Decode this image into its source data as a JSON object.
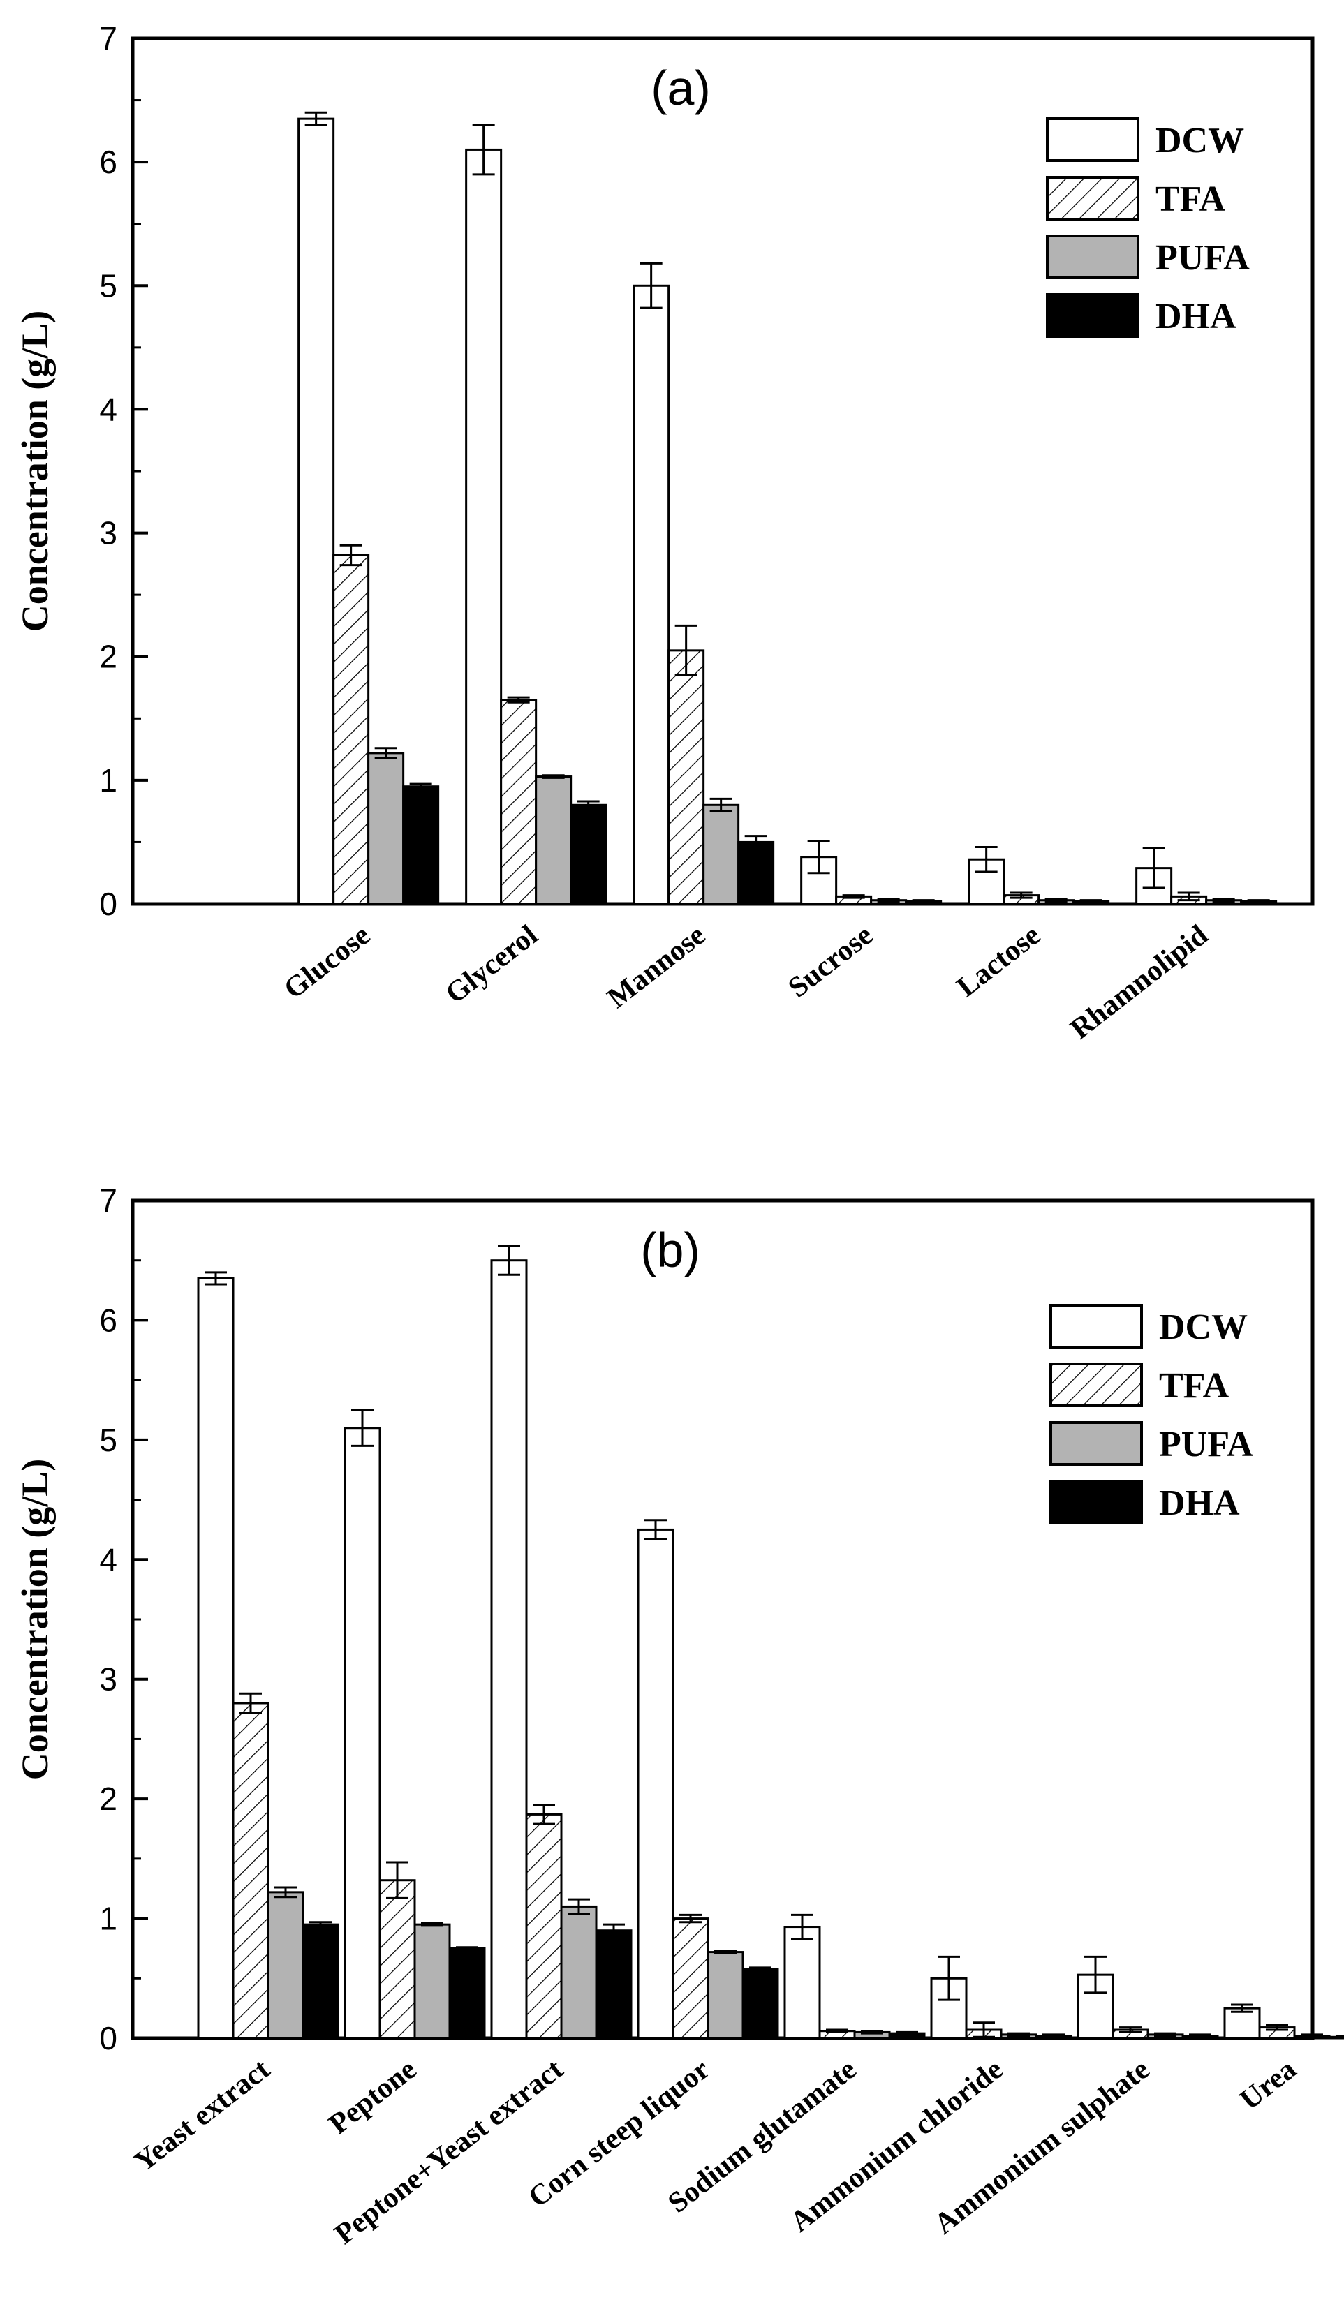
{
  "chart_data": [
    {
      "type": "bar",
      "panel_label": "(a)",
      "ylabel": "Concentration (g/L)",
      "xlabel": "",
      "ylim": [
        0,
        7
      ],
      "yticks": [
        0,
        1,
        2,
        3,
        4,
        5,
        6,
        7
      ],
      "categories": [
        "Glucose",
        "Glycerol",
        "Mannose",
        "Sucrose",
        "Lactose",
        "Rhamnolipid"
      ],
      "legend_position": "top-right",
      "series": [
        {
          "name": "DCW",
          "style": "white",
          "values": [
            6.35,
            6.1,
            5.0,
            0.38,
            0.36,
            0.29
          ],
          "errors": [
            0.05,
            0.2,
            0.18,
            0.13,
            0.1,
            0.16
          ]
        },
        {
          "name": "TFA",
          "style": "hatched",
          "values": [
            2.82,
            1.65,
            2.05,
            0.06,
            0.07,
            0.06
          ],
          "errors": [
            0.08,
            0.02,
            0.2,
            0.01,
            0.02,
            0.03
          ]
        },
        {
          "name": "PUFA",
          "style": "gray",
          "values": [
            1.22,
            1.03,
            0.8,
            0.03,
            0.03,
            0.03
          ],
          "errors": [
            0.04,
            0.01,
            0.05,
            0.01,
            0.01,
            0.01
          ]
        },
        {
          "name": "DHA",
          "style": "black",
          "values": [
            0.95,
            0.8,
            0.5,
            0.02,
            0.02,
            0.02
          ],
          "errors": [
            0.02,
            0.03,
            0.05,
            0.01,
            0.01,
            0.01
          ]
        }
      ]
    },
    {
      "type": "bar",
      "panel_label": "(b)",
      "ylabel": "Concentration (g/L)",
      "xlabel": "",
      "ylim": [
        0,
        7
      ],
      "yticks": [
        0,
        1,
        2,
        3,
        4,
        5,
        6,
        7
      ],
      "categories": [
        "Yeast extract",
        "Peptone",
        "Peptone+Yeast extract",
        "Corn steep liquor",
        "Sodium glutamate",
        "Ammonium chloride",
        "Ammonium sulphate",
        "Urea"
      ],
      "legend_position": "top-right",
      "series": [
        {
          "name": "DCW",
          "style": "white",
          "values": [
            6.35,
            5.1,
            6.5,
            4.25,
            0.93,
            0.5,
            0.53,
            0.25
          ],
          "errors": [
            0.05,
            0.15,
            0.12,
            0.08,
            0.1,
            0.18,
            0.15,
            0.03
          ]
        },
        {
          "name": "TFA",
          "style": "hatched",
          "values": [
            2.8,
            1.32,
            1.87,
            1.0,
            0.06,
            0.07,
            0.07,
            0.09
          ],
          "errors": [
            0.08,
            0.15,
            0.08,
            0.03,
            0.01,
            0.06,
            0.02,
            0.02
          ]
        },
        {
          "name": "PUFA",
          "style": "gray",
          "values": [
            1.22,
            0.95,
            1.1,
            0.72,
            0.05,
            0.03,
            0.03,
            0.02
          ],
          "errors": [
            0.04,
            0.01,
            0.06,
            0.01,
            0.01,
            0.01,
            0.01,
            0.01
          ]
        },
        {
          "name": "DHA",
          "style": "black",
          "values": [
            0.95,
            0.75,
            0.9,
            0.58,
            0.04,
            0.02,
            0.02,
            0.01
          ],
          "errors": [
            0.02,
            0.01,
            0.05,
            0.01,
            0.01,
            0.01,
            0.01,
            0.01
          ]
        }
      ]
    }
  ]
}
